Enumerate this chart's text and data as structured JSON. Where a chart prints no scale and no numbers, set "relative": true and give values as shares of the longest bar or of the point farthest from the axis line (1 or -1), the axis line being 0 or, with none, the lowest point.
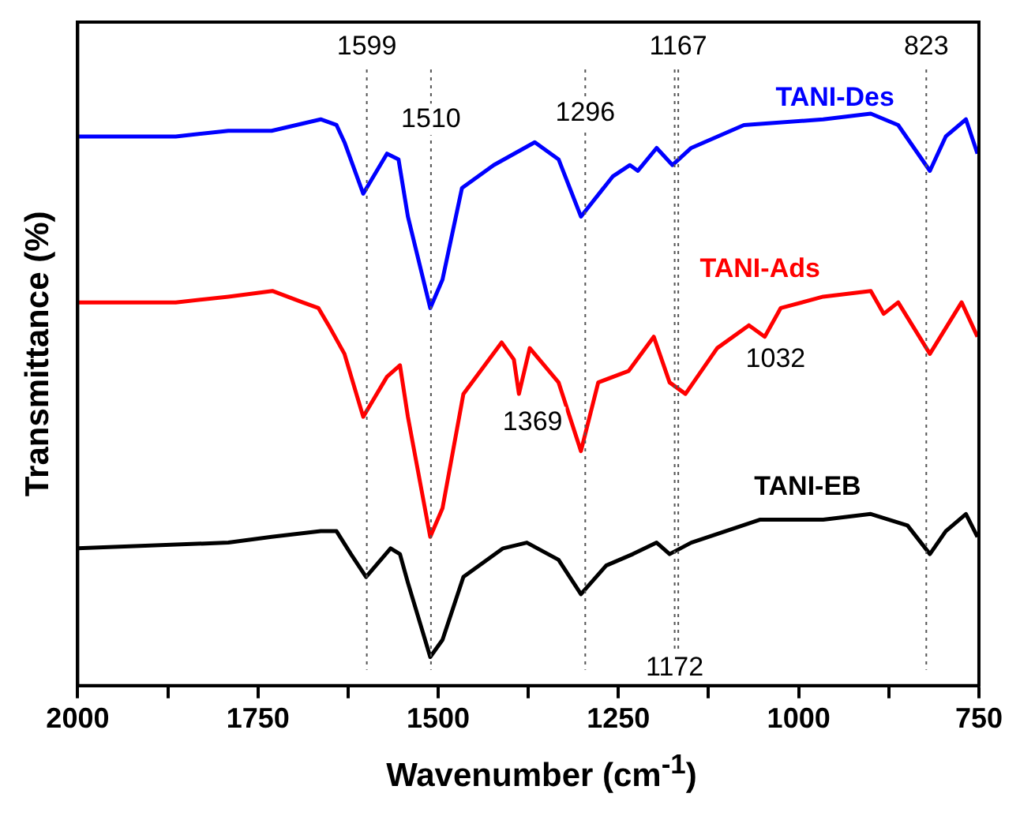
{
  "chart_data": {
    "type": "line",
    "xlabel": "Wavenumber (cm$^{-1}$)",
    "ylabel": "Transmittance (%)",
    "relative": true,
    "xlim": [
      2000,
      750
    ],
    "xticks": [
      2000,
      {
        "value": 1875,
        "label": null
      },
      1750,
      {
        "value": 1625,
        "label": null
      },
      1500,
      {
        "value": 1375,
        "label": null
      },
      1250,
      {
        "value": 1125,
        "label": null
      },
      1000,
      {
        "value": 875,
        "label": null
      },
      750
    ],
    "grid": false,
    "legend": false,
    "marker": "none",
    "line_style": "solid",
    "series": [
      {
        "name": "TANI-Des",
        "color": "#0000ff",
        "x": [
          2000,
          1864,
          1791,
          1731,
          1663,
          1641,
          1630,
          1604,
          1571,
          1555,
          1542,
          1511,
          1494,
          1467,
          1423,
          1366,
          1333,
          1302,
          1258,
          1234,
          1223,
          1197,
          1175,
          1149,
          1076,
          966,
          900,
          862,
          840,
          818,
          796,
          768,
          752
        ],
        "values": [
          0.96,
          0.96,
          0.97,
          0.97,
          0.99,
          0.98,
          0.95,
          0.86,
          0.93,
          0.92,
          0.82,
          0.66,
          0.71,
          0.87,
          0.91,
          0.95,
          0.92,
          0.82,
          0.89,
          0.91,
          0.9,
          0.94,
          0.91,
          0.94,
          0.98,
          0.99,
          1.0,
          0.98,
          0.94,
          0.9,
          0.96,
          0.99,
          0.93
        ]
      },
      {
        "name": "TANI-Ads",
        "color": "#ff0000",
        "x": [
          2000,
          1864,
          1791,
          1730,
          1688,
          1666,
          1652,
          1630,
          1604,
          1571,
          1553,
          1542,
          1511,
          1494,
          1465,
          1412,
          1395,
          1388,
          1373,
          1333,
          1302,
          1278,
          1236,
          1201,
          1179,
          1157,
          1113,
          1069,
          1047,
          1025,
          966,
          900,
          882,
          862,
          818,
          774,
          752
        ],
        "values": [
          0.67,
          0.67,
          0.68,
          0.69,
          0.67,
          0.66,
          0.63,
          0.58,
          0.47,
          0.54,
          0.56,
          0.47,
          0.26,
          0.31,
          0.51,
          0.6,
          0.57,
          0.51,
          0.59,
          0.53,
          0.41,
          0.53,
          0.55,
          0.61,
          0.53,
          0.51,
          0.59,
          0.63,
          0.61,
          0.66,
          0.68,
          0.69,
          0.65,
          0.67,
          0.58,
          0.67,
          0.61
        ]
      },
      {
        "name": "TANI-EB",
        "color": "#000000",
        "x": [
          2000,
          1791,
          1731,
          1663,
          1641,
          1621,
          1600,
          1566,
          1553,
          1542,
          1511,
          1494,
          1465,
          1410,
          1377,
          1333,
          1302,
          1267,
          1230,
          1197,
          1179,
          1149,
          1054,
          966,
          900,
          849,
          818,
          796,
          768,
          752
        ],
        "values": [
          0.24,
          0.25,
          0.26,
          0.27,
          0.27,
          0.23,
          0.19,
          0.24,
          0.23,
          0.18,
          0.05,
          0.08,
          0.19,
          0.24,
          0.25,
          0.22,
          0.16,
          0.21,
          0.23,
          0.25,
          0.23,
          0.25,
          0.29,
          0.29,
          0.3,
          0.28,
          0.23,
          0.27,
          0.3,
          0.26
        ]
      }
    ],
    "ref_lines": [
      {
        "axis": "x",
        "value": 1599,
        "line_style": "dotted",
        "label": "1599"
      },
      {
        "axis": "x",
        "value": 1510,
        "line_style": "dotted"
      },
      {
        "axis": "x",
        "value": 1296,
        "line_style": "dotted"
      },
      {
        "axis": "x",
        "value": 1172,
        "line_style": "dotted"
      },
      {
        "axis": "x",
        "value": 1167,
        "line_style": "dotted",
        "label": "1167"
      },
      {
        "axis": "x",
        "value": 823,
        "line_style": "dotted",
        "label": "823"
      }
    ],
    "annotations": [
      {
        "text": "1510",
        "x": 1510,
        "y": 0.99
      },
      {
        "text": "1296",
        "x": 1296,
        "y": 1.0
      },
      {
        "text": "1369",
        "x": 1369,
        "y": 0.46
      },
      {
        "text": "1032",
        "x": 1032,
        "y": 0.57
      },
      {
        "text": "1172",
        "x": 1172,
        "y": 0.03
      }
    ]
  }
}
